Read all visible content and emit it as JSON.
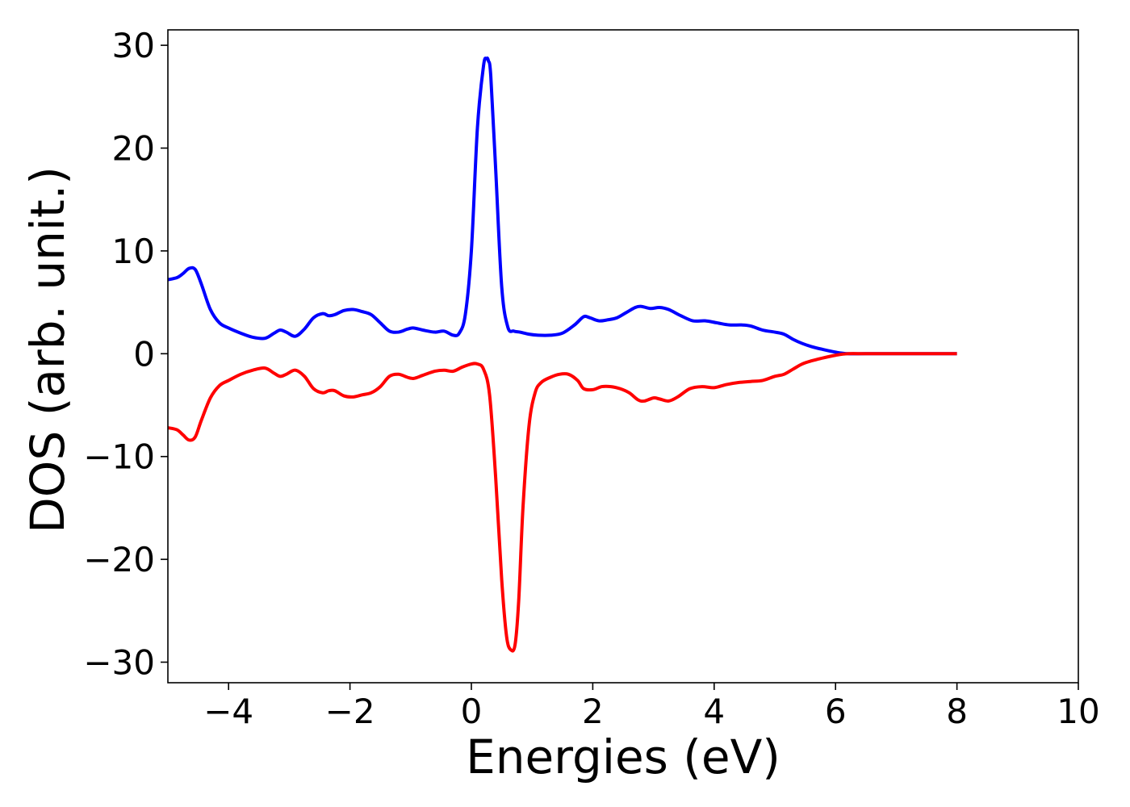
{
  "chart_data": {
    "type": "line",
    "title": "",
    "xlabel": "Energies (eV)",
    "ylabel": "DOS (arb. unit.)",
    "xlim": [
      -5,
      10
    ],
    "ylim": [
      -32,
      31.5
    ],
    "xticks": [
      -4,
      -2,
      0,
      2,
      4,
      6,
      8,
      10
    ],
    "xtick_labels": [
      "−4",
      "−2",
      "0",
      "2",
      "4",
      "6",
      "8",
      "10"
    ],
    "yticks": [
      30,
      20,
      10,
      0,
      -10,
      -20,
      -30
    ],
    "ytick_labels": [
      "30",
      "20",
      "10",
      "0",
      "−10",
      "−20",
      "−30"
    ],
    "grid": false,
    "legend": "none",
    "series": [
      {
        "color": "#0000ff",
        "x": [
          -5.0,
          -4.85,
          -4.75,
          -4.65,
          -4.55,
          -4.45,
          -4.3,
          -4.15,
          -4.0,
          -3.8,
          -3.6,
          -3.4,
          -3.25,
          -3.15,
          -3.05,
          -2.9,
          -2.75,
          -2.6,
          -2.45,
          -2.35,
          -2.25,
          -2.1,
          -1.95,
          -1.8,
          -1.65,
          -1.5,
          -1.35,
          -1.2,
          -1.05,
          -0.95,
          -0.8,
          -0.6,
          -0.45,
          -0.3,
          -0.2,
          -0.1,
          0.0,
          0.1,
          0.2,
          0.25,
          0.28,
          0.32,
          0.4,
          0.5,
          0.6,
          0.7,
          0.8,
          0.95,
          1.1,
          1.3,
          1.5,
          1.7,
          1.85,
          1.95,
          2.1,
          2.25,
          2.4,
          2.55,
          2.7,
          2.8,
          2.95,
          3.1,
          3.25,
          3.45,
          3.65,
          3.85,
          4.05,
          4.25,
          4.45,
          4.6,
          4.8,
          5.0,
          5.15,
          5.3,
          5.45,
          5.6,
          5.8,
          6.0,
          6.2,
          6.5,
          7.0,
          7.5,
          8.0
        ],
        "values": [
          7.2,
          7.4,
          7.8,
          8.3,
          8.2,
          6.8,
          4.3,
          3.0,
          2.5,
          2.0,
          1.6,
          1.5,
          2.0,
          2.3,
          2.1,
          1.7,
          2.4,
          3.5,
          3.9,
          3.7,
          3.8,
          4.2,
          4.3,
          4.1,
          3.8,
          3.0,
          2.2,
          2.1,
          2.4,
          2.5,
          2.3,
          2.1,
          2.2,
          1.8,
          2.0,
          3.8,
          10.0,
          22.0,
          28.0,
          28.7,
          28.5,
          27.0,
          18.0,
          6.5,
          2.6,
          2.2,
          2.1,
          1.9,
          1.8,
          1.8,
          2.0,
          2.8,
          3.6,
          3.5,
          3.2,
          3.3,
          3.5,
          4.0,
          4.5,
          4.6,
          4.4,
          4.5,
          4.3,
          3.7,
          3.2,
          3.2,
          3.0,
          2.8,
          2.8,
          2.7,
          2.3,
          2.1,
          1.9,
          1.4,
          1.0,
          0.7,
          0.4,
          0.15,
          0.0,
          0.0,
          0.0,
          0.0,
          0.0
        ]
      },
      {
        "color": "#ff0000",
        "x": [
          -5.0,
          -4.85,
          -4.75,
          -4.65,
          -4.55,
          -4.45,
          -4.3,
          -4.15,
          -4.0,
          -3.8,
          -3.6,
          -3.4,
          -3.25,
          -3.15,
          -3.05,
          -2.9,
          -2.75,
          -2.6,
          -2.45,
          -2.35,
          -2.25,
          -2.1,
          -1.95,
          -1.8,
          -1.65,
          -1.5,
          -1.35,
          -1.2,
          -1.05,
          -0.95,
          -0.8,
          -0.6,
          -0.45,
          -0.3,
          -0.15,
          0.0,
          0.1,
          0.2,
          0.3,
          0.4,
          0.5,
          0.58,
          0.65,
          0.72,
          0.78,
          0.85,
          0.95,
          1.05,
          1.15,
          1.3,
          1.45,
          1.6,
          1.75,
          1.85,
          2.0,
          2.15,
          2.3,
          2.45,
          2.6,
          2.75,
          2.85,
          3.0,
          3.1,
          3.25,
          3.4,
          3.6,
          3.8,
          4.0,
          4.2,
          4.4,
          4.6,
          4.8,
          5.0,
          5.15,
          5.3,
          5.45,
          5.6,
          5.8,
          6.0,
          6.2,
          6.5,
          7.0,
          7.5,
          8.0
        ],
        "values": [
          -7.2,
          -7.4,
          -7.9,
          -8.4,
          -8.1,
          -6.5,
          -4.3,
          -3.1,
          -2.6,
          -2.0,
          -1.6,
          -1.4,
          -1.9,
          -2.2,
          -2.0,
          -1.6,
          -2.2,
          -3.4,
          -3.8,
          -3.6,
          -3.6,
          -4.1,
          -4.2,
          -4.0,
          -3.8,
          -3.2,
          -2.2,
          -2.0,
          -2.3,
          -2.4,
          -2.1,
          -1.7,
          -1.6,
          -1.7,
          -1.3,
          -1.0,
          -1.0,
          -1.5,
          -4.0,
          -12.0,
          -22.0,
          -27.5,
          -28.8,
          -28.3,
          -24.0,
          -15.0,
          -7.0,
          -3.8,
          -2.8,
          -2.3,
          -2.0,
          -2.0,
          -2.6,
          -3.4,
          -3.5,
          -3.2,
          -3.2,
          -3.4,
          -3.8,
          -4.5,
          -4.6,
          -4.3,
          -4.4,
          -4.6,
          -4.2,
          -3.4,
          -3.2,
          -3.3,
          -3.0,
          -2.8,
          -2.7,
          -2.6,
          -2.2,
          -2.0,
          -1.5,
          -1.0,
          -0.7,
          -0.4,
          -0.15,
          0.0,
          0.0,
          0.0,
          0.0,
          0.0
        ]
      }
    ]
  }
}
